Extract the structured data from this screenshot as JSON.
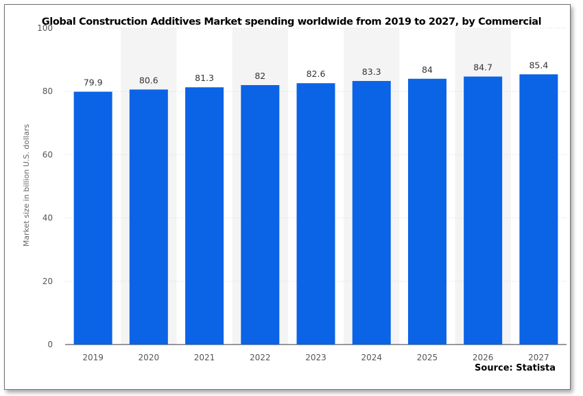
{
  "chart_data": {
    "type": "bar",
    "title": "Global Construction Additives Market spending worldwide from 2019 to 2027, by Commercial",
    "ylabel": "Market size in billion U.S. dollars",
    "xlabel": "",
    "categories": [
      "2019",
      "2020",
      "2021",
      "2022",
      "2023",
      "2024",
      "2025",
      "2026",
      "2027"
    ],
    "values": [
      79.9,
      80.6,
      81.3,
      82,
      82.6,
      83.3,
      84,
      84.7,
      85.4
    ],
    "data_labels": [
      "79.9",
      "80.6",
      "81.3",
      "82",
      "82.6",
      "83.3",
      "84",
      "84.7",
      "85.4"
    ],
    "ylim": [
      0,
      100
    ],
    "yticks": [
      0,
      20,
      40,
      60,
      80,
      100
    ],
    "grid": true,
    "bar_color": "#0b63e5",
    "band_color": "#f4f4f4"
  },
  "source": "Source: Statista"
}
